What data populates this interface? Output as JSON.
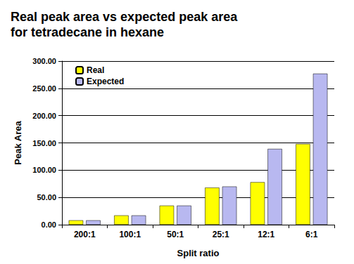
{
  "chart_data": {
    "type": "bar",
    "title": "Real peak area vs expected peak area\nfor tetradecane in hexane",
    "x_label": "Split ratio",
    "y_label": "Peak Area",
    "categories": [
      "200:1",
      "100:1",
      "50:1",
      "25:1",
      "12:1",
      "6:1"
    ],
    "series": [
      {
        "name": "Real",
        "color": "#ffff00",
        "values": [
          8,
          17,
          35,
          68,
          78,
          148
        ]
      },
      {
        "name": "Expected",
        "color": "#b8b8f0",
        "values": [
          8,
          17,
          35,
          70,
          139,
          277
        ]
      }
    ],
    "ylim": [
      0,
      300
    ],
    "yticks": [
      {
        "value": 0,
        "label": "0.00"
      },
      {
        "value": 50,
        "label": "50.00"
      },
      {
        "value": 100,
        "label": "100.00"
      },
      {
        "value": 150,
        "label": "150.00"
      },
      {
        "value": 200,
        "label": "200.00"
      },
      {
        "value": 250,
        "label": "250.00"
      },
      {
        "value": 300,
        "label": "300.00"
      }
    ],
    "grid": true,
    "legend": "top-left"
  }
}
